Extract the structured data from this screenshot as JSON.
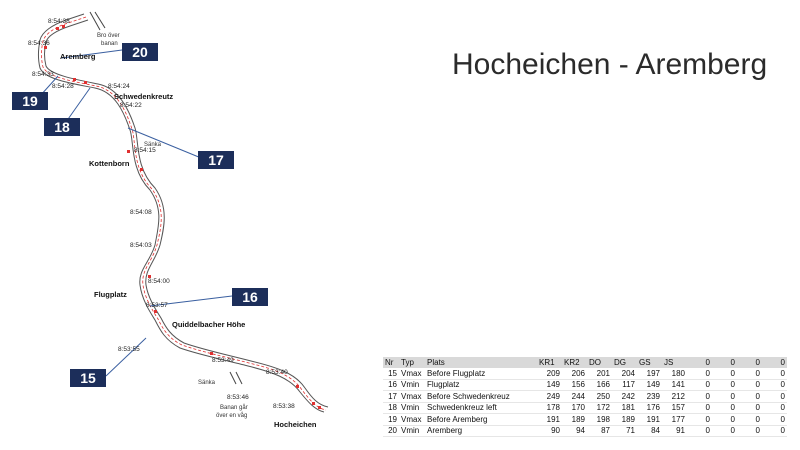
{
  "slide_title": "Hocheichen - Aremberg",
  "callouts": [
    "20",
    "19",
    "18",
    "17",
    "16",
    "15"
  ],
  "places": {
    "aremberg": "Aremberg",
    "schwedenkreutz": "Schwedenkreutz",
    "kottenborn": "Kottenborn",
    "flugplatz": "Flugplatz",
    "quiddelbacher": "Quiddelbacher Höhe",
    "hocheichen": "Hocheichen"
  },
  "notes": {
    "bro_1": "Bro över",
    "bro_2": "banan",
    "sanka_1": "Sänka",
    "sanka_2": "Sänka",
    "banan_1": "Banan går",
    "banan_2": "över en våg"
  },
  "times": [
    "8:54:38",
    "8:54:36",
    "8:54:33",
    "8:54:28",
    "8:54:24",
    "8:54:22",
    "8:54:15",
    "8:54:08",
    "8:54:03",
    "8:54:00",
    "8:53:57",
    "8:53:55",
    "8:53:49",
    "8:53:46",
    "8:53:40",
    "8:53:38"
  ],
  "table": {
    "headers": [
      "Nr",
      "Typ",
      "Plats",
      "KR1",
      "KR2",
      "DO",
      "DG",
      "GS",
      "JS",
      "0",
      "0",
      "0",
      "0"
    ],
    "rows": [
      [
        "15",
        "Vmax",
        "Before Flugplatz",
        "209",
        "206",
        "201",
        "204",
        "197",
        "180",
        "0",
        "0",
        "0",
        "0"
      ],
      [
        "16",
        "Vmin",
        "Flugplatz",
        "149",
        "156",
        "166",
        "117",
        "149",
        "141",
        "0",
        "0",
        "0",
        "0"
      ],
      [
        "17",
        "Vmax",
        "Before Schwedenkreuz",
        "249",
        "244",
        "250",
        "242",
        "239",
        "212",
        "0",
        "0",
        "0",
        "0"
      ],
      [
        "18",
        "Vmin",
        "Schwedenkreuz left",
        "178",
        "170",
        "172",
        "181",
        "176",
        "157",
        "0",
        "0",
        "0",
        "0"
      ],
      [
        "19",
        "Vmax",
        "Before Aremberg",
        "191",
        "189",
        "198",
        "189",
        "191",
        "177",
        "0",
        "0",
        "0",
        "0"
      ],
      [
        "20",
        "Vmin",
        "Aremberg",
        "90",
        "94",
        "87",
        "71",
        "84",
        "91",
        "0",
        "0",
        "0",
        "0"
      ]
    ]
  },
  "colors": {
    "callout_bg": "#1c2e5a",
    "track_line": "#555555",
    "racing_line": "#e03030",
    "pointer": "#3a5fa0"
  }
}
